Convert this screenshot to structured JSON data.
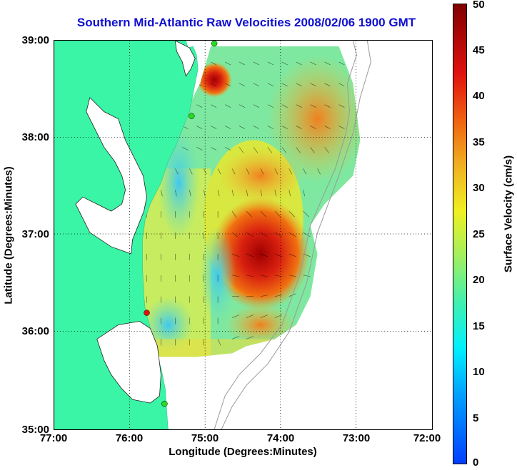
{
  "title": "Southern Mid-Atlantic Raw Velocities 2008/02/06 1900 GMT",
  "xaxis": {
    "label": "Longitude (Degrees:Minutes)",
    "ticks": [
      "77:00",
      "76:00",
      "75:00",
      "74:00",
      "73:00",
      "72:00"
    ]
  },
  "yaxis": {
    "label": "Latitude (Degrees:Minutes)",
    "ticks": [
      "39:00",
      "38:00",
      "37:00",
      "36:00",
      "35:00"
    ]
  },
  "colorbar": {
    "label": "Surface Velocity (cm/s)",
    "ticks": [
      "50",
      "45",
      "40",
      "35",
      "30",
      "25",
      "20",
      "15",
      "10",
      "5",
      "0"
    ],
    "min": 0,
    "max": 50
  },
  "colors": {
    "land": "#3af5a6",
    "title": "#1010d0",
    "station_green": "#22dd22",
    "station_red": "#e01010"
  }
}
